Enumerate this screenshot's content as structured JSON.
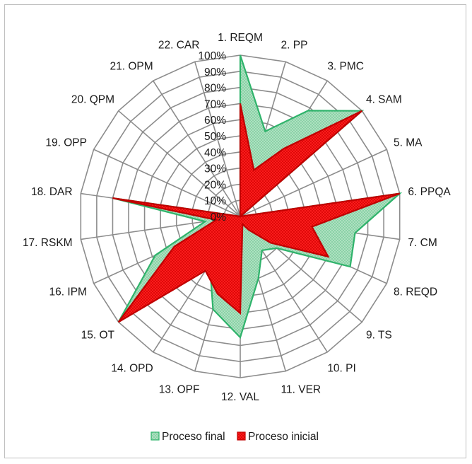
{
  "chart_data": {
    "type": "radar",
    "categories": [
      "1.  REQM",
      "2. PP",
      "3. PMC",
      "4. SAM",
      "5. MA",
      "6. PPQA",
      "7. CM",
      "8. REQD",
      "9. TS",
      "10. PI",
      "11. VER",
      "12. VAL",
      "13. OPF",
      "14. OPD",
      "15. OT",
      "16. IPM",
      "17. RSKM",
      "18. DAR",
      "19. OPP",
      "20. QPM",
      "21. OPM",
      "22. CAR"
    ],
    "series": [
      {
        "name": "Proceso final",
        "color": "#2fb36b",
        "fill": "#a8dcbc",
        "values": [
          100,
          55,
          78,
          100,
          0,
          100,
          72,
          75,
          30,
          25,
          40,
          75,
          60,
          35,
          100,
          58,
          22,
          80,
          0,
          0,
          0,
          0
        ]
      },
      {
        "name": "Proceso inicial",
        "color": "#c00000",
        "fill": "#ff2a2a",
        "values": [
          70,
          30,
          50,
          100,
          0,
          100,
          45,
          60,
          25,
          10,
          5,
          60,
          50,
          40,
          100,
          45,
          15,
          80,
          0,
          0,
          0,
          0
        ]
      }
    ],
    "ticks": [
      "0%",
      "10%",
      "20%",
      "30%",
      "40%",
      "50%",
      "60%",
      "70%",
      "80%",
      "90%",
      "100%"
    ],
    "ylim": [
      0,
      100
    ],
    "grid": true,
    "legend_position": "bottom"
  }
}
